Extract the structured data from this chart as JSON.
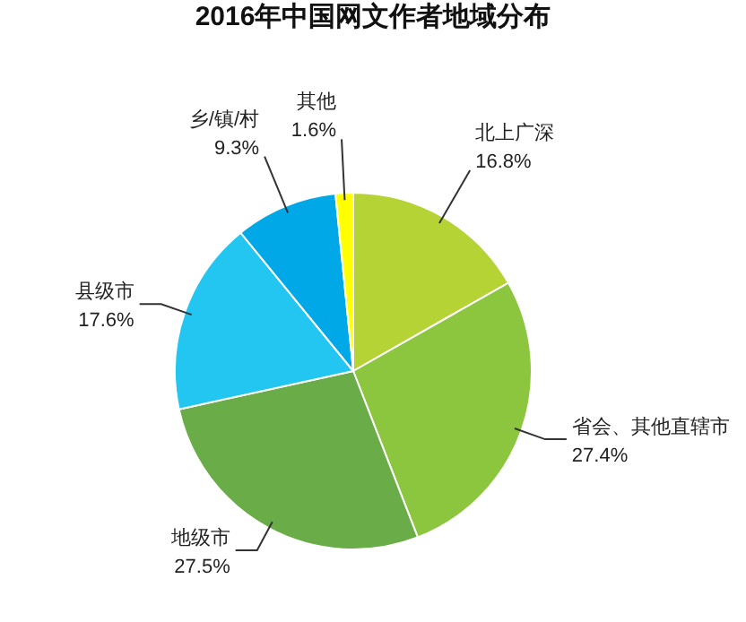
{
  "chart_data": {
    "type": "pie",
    "title": "2016年中国网文作者地域分布",
    "categories": [
      "北上广深",
      "省会、其他直辖市",
      "地级市",
      "县级市",
      "乡/镇/村",
      "其他"
    ],
    "values": [
      16.8,
      27.4,
      27.5,
      17.6,
      9.3,
      1.6
    ],
    "value_labels": [
      "16.8%",
      "27.4%",
      "27.5%",
      "17.6%",
      "9.3%",
      "1.6%"
    ],
    "colors": [
      "#b5d334",
      "#8cc63f",
      "#6aad48",
      "#22c6f0",
      "#00a8e8",
      "#ffff00"
    ],
    "legend": false
  }
}
